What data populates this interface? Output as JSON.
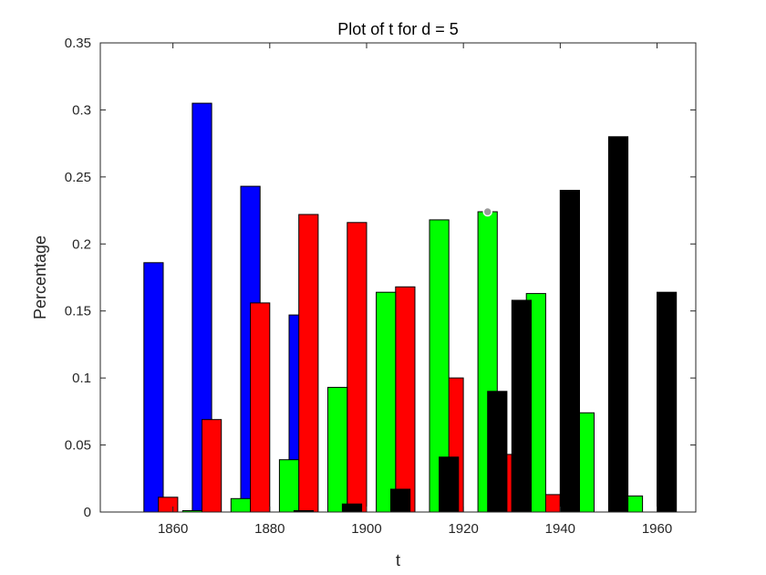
{
  "chart_data": {
    "type": "bar",
    "title": "Plot of t for d = 5",
    "xlabel": "t",
    "ylabel": "Percentage",
    "xlim": [
      1845,
      1968
    ],
    "ylim": [
      0,
      0.35
    ],
    "xticks": [
      "1860",
      "1880",
      "1900",
      "1920",
      "1940",
      "1960"
    ],
    "yticks": [
      "0",
      "0.05",
      "0.1",
      "0.15",
      "0.2",
      "0.25",
      "0.3",
      "0.35"
    ],
    "grid": false,
    "bar_width_years": 4.0,
    "series": [
      {
        "color": "#0000ff",
        "points": [
          {
            "x": 1856,
            "y": 0.186
          },
          {
            "x": 1866,
            "y": 0.305
          },
          {
            "x": 1876,
            "y": 0.243
          },
          {
            "x": 1886,
            "y": 0.147
          }
        ]
      },
      {
        "color": "#ff0000",
        "points": [
          {
            "x": 1859,
            "y": 0.011
          },
          {
            "x": 1868,
            "y": 0.069
          },
          {
            "x": 1878,
            "y": 0.156
          },
          {
            "x": 1888,
            "y": 0.222
          },
          {
            "x": 1898,
            "y": 0.216
          },
          {
            "x": 1908,
            "y": 0.168
          },
          {
            "x": 1918,
            "y": 0.1
          },
          {
            "x": 1928,
            "y": 0.043
          },
          {
            "x": 1938,
            "y": 0.013
          }
        ]
      },
      {
        "color": "#00ff00",
        "points": [
          {
            "x": 1864,
            "y": 0.001
          },
          {
            "x": 1874,
            "y": 0.01
          },
          {
            "x": 1884,
            "y": 0.039
          },
          {
            "x": 1894,
            "y": 0.093
          },
          {
            "x": 1904,
            "y": 0.164
          },
          {
            "x": 1915,
            "y": 0.218
          },
          {
            "x": 1925,
            "y": 0.224
          },
          {
            "x": 1935,
            "y": 0.163
          },
          {
            "x": 1945,
            "y": 0.074
          },
          {
            "x": 1955,
            "y": 0.012
          }
        ]
      },
      {
        "color": "#000000",
        "points": [
          {
            "x": 1887,
            "y": 0.001
          },
          {
            "x": 1897,
            "y": 0.006
          },
          {
            "x": 1907,
            "y": 0.017
          },
          {
            "x": 1917,
            "y": 0.041
          },
          {
            "x": 1927,
            "y": 0.09
          },
          {
            "x": 1932,
            "y": 0.158
          },
          {
            "x": 1942,
            "y": 0.24
          },
          {
            "x": 1952,
            "y": 0.28
          },
          {
            "x": 1962,
            "y": 0.164
          }
        ]
      }
    ],
    "marker": {
      "x": 1925,
      "y": 0.224,
      "color": "#999999"
    }
  }
}
